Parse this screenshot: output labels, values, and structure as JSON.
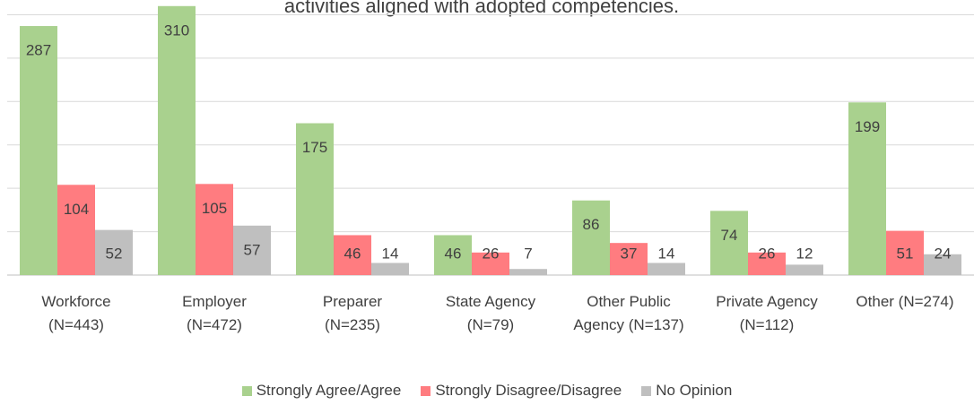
{
  "chart_data": {
    "type": "bar",
    "title": "activities aligned with adopted competencies.",
    "categories": [
      "Workforce\n(N=443)",
      "Employer\n(N=472)",
      "Preparer\n(N=235)",
      "State Agency\n(N=79)",
      "Other Public\nAgency (N=137)",
      "Private Agency\n(N=112)",
      "Other (N=274)"
    ],
    "series": [
      {
        "name": "Strongly Agree/Agree",
        "color": "#a9d18e",
        "values": [
          287,
          310,
          175,
          46,
          86,
          74,
          199
        ]
      },
      {
        "name": "Strongly Disagree/Disagree",
        "color": "#ff7c80",
        "values": [
          104,
          105,
          46,
          26,
          37,
          26,
          51
        ]
      },
      {
        "name": "No Opinion",
        "color": "#bfbfbf",
        "values": [
          52,
          57,
          14,
          7,
          14,
          12,
          24
        ]
      }
    ],
    "ylim": [
      0,
      317
    ],
    "yticks": [
      0,
      50,
      100,
      150,
      200,
      250,
      300
    ],
    "grid": true,
    "legend": "bottom"
  }
}
